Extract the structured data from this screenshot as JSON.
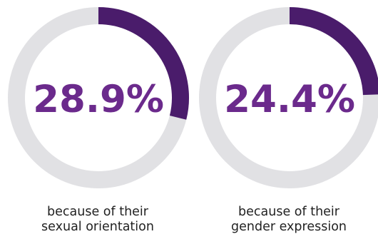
{
  "colors": {
    "accent": "#4a1c6b",
    "value_text": "#6b2a8c",
    "track": "#e1e1e4",
    "caption_text": "#222222"
  },
  "chart_data": [
    {
      "type": "pie",
      "style": "donut",
      "value": 28.9,
      "value_label": "28.9%",
      "caption": [
        "because of their",
        "sexual orientation"
      ]
    },
    {
      "type": "pie",
      "style": "donut",
      "value": 24.4,
      "value_label": "24.4%",
      "caption": [
        "because of their",
        "gender expression"
      ]
    }
  ]
}
